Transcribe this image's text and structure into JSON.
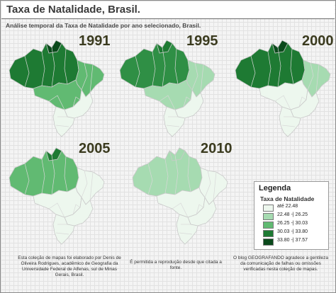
{
  "header": {
    "title": "Taxa de Natalidade, Brasil.",
    "subtitle": "Análise temporal da Taxa de Natalidade por ano selecionado, Brasil."
  },
  "maps": [
    {
      "year": "1991",
      "fill_north": "#1e7a33",
      "fill_northeast": "#61ba72",
      "fill_center": "#61ba72",
      "fill_south": "#edf7ee",
      "fill_accent": "#0b4a1c"
    },
    {
      "year": "1995",
      "fill_north": "#2f8f45",
      "fill_northeast": "#a6dbb1",
      "fill_center": "#a6dbb1",
      "fill_south": "#edf7ee",
      "fill_accent": "#1e7a33"
    },
    {
      "year": "2000",
      "fill_north": "#1e7a33",
      "fill_northeast": "#a6dbb1",
      "fill_center": "#edf7ee",
      "fill_south": "#edf7ee",
      "fill_accent": "#0b4a1c"
    },
    {
      "year": "2005",
      "fill_north": "#61ba72",
      "fill_northeast": "#edf7ee",
      "fill_center": "#edf7ee",
      "fill_south": "#edf7ee",
      "fill_accent": "#1e7a33"
    },
    {
      "year": "2010",
      "fill_north": "#a6dbb1",
      "fill_northeast": "#edf7ee",
      "fill_center": "#edf7ee",
      "fill_south": "#edf7ee",
      "fill_accent": "#a6dbb1"
    }
  ],
  "legend": {
    "title": "Legenda",
    "subtitle": "Taxa de Natalidade",
    "items": [
      {
        "label": "até 22.48",
        "color": "#edf7ee"
      },
      {
        "label": "22.48 -| 26.25",
        "color": "#a6dbb1"
      },
      {
        "label": "26.25 -| 30.03",
        "color": "#61ba72"
      },
      {
        "label": "30.03 -| 33.80",
        "color": "#1e7a33"
      },
      {
        "label": "33.80 -| 37.57",
        "color": "#0b4a1c"
      }
    ]
  },
  "footnotes": {
    "left": "Esta coleção de mapas foi elaborado por Denis de Oliveira Rodrigues, acadêmico de Geografia da Universidade Federal de Alfenas, sul de Minas Gerais, Brasil.",
    "center": "É permitida a reprodução desde que citada a fonte.",
    "right": "O blog GEOGRAFANDO agradece a gentileza da comunicação de falhas ou omissões verificadas nesta coleção de mapas."
  }
}
